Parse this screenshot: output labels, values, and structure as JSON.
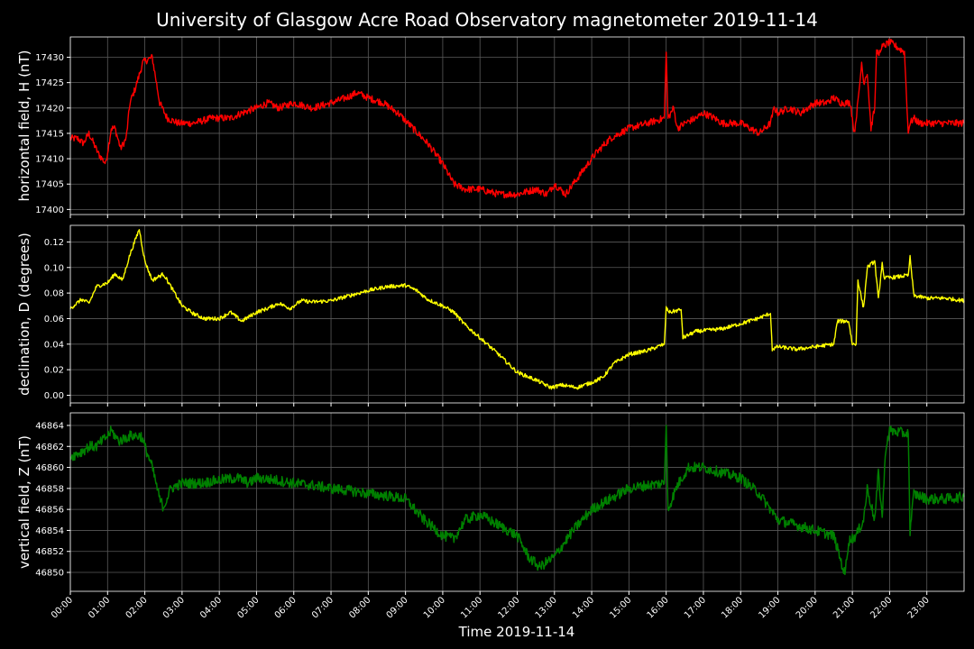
{
  "title": "University of Glasgow Acre Road Observatory magnetometer 2019-11-14",
  "xlabel": "Time 2019-11-14",
  "x_ticks": [
    "00:00",
    "01:00",
    "02:00",
    "03:00",
    "04:00",
    "05:00",
    "06:00",
    "07:00",
    "08:00",
    "09:00",
    "10:00",
    "11:00",
    "12:00",
    "13:00",
    "14:00",
    "15:00",
    "16:00",
    "17:00",
    "18:00",
    "19:00",
    "20:00",
    "21:00",
    "22:00",
    "23:00"
  ],
  "colors": {
    "background": "#000000",
    "grid": "#5a5a5a",
    "H": "#ff0000",
    "D": "#ffff00",
    "Z": "#008000"
  },
  "chart_data": [
    {
      "type": "line",
      "id": "H",
      "ylabel": "horizontal field, H (nT)",
      "ylim": [
        17399,
        17434
      ],
      "y_ticks": [
        17400,
        17405,
        17410,
        17415,
        17420,
        17425,
        17430
      ],
      "xlim_hours": [
        0,
        24
      ],
      "noise": 0.7,
      "grid": true,
      "series": [
        {
          "x_hours": [
            0,
            0.2,
            0.35,
            0.5,
            0.75,
            0.95,
            1.1,
            1.2,
            1.35,
            1.5,
            1.6,
            1.75,
            1.95,
            2.2,
            2.4,
            2.6,
            2.9,
            3.3,
            3.8,
            4.3,
            4.6,
            5.0,
            5.3,
            5.6,
            6.0,
            6.5,
            7.0,
            7.4,
            7.7,
            8.0,
            8.4,
            8.8,
            9.2,
            9.6,
            10.0,
            10.3,
            10.6,
            11.0,
            11.5,
            12.0,
            12.5,
            12.8,
            13.0,
            13.3,
            13.5,
            13.8,
            14.1,
            14.5,
            15.0,
            15.5,
            15.95,
            16.0,
            16.05,
            16.2,
            16.3,
            16.5,
            16.8,
            17.0,
            17.3,
            17.5,
            18.0,
            18.5,
            18.8,
            18.9,
            19.0,
            19.3,
            19.6,
            20.0,
            20.3,
            20.5,
            20.7,
            20.95,
            21.05,
            21.15,
            21.25,
            21.3,
            21.4,
            21.5,
            21.6,
            21.65,
            21.75,
            21.8,
            22.0,
            22.2,
            22.4,
            22.5,
            22.55,
            22.65,
            22.8,
            23.2,
            23.7,
            24.0
          ],
          "values": [
            17414,
            17414,
            17413,
            17415,
            17411,
            17409,
            17416,
            17416,
            17412,
            17414,
            17421,
            17424,
            17429,
            17430,
            17421,
            17418,
            17417,
            17417,
            17418,
            17418,
            17419,
            17420,
            17421,
            17420,
            17421,
            17420,
            17421,
            17422,
            17423,
            17422,
            17421,
            17419,
            17416,
            17413,
            17409,
            17405,
            17404,
            17404,
            17403,
            17403,
            17404,
            17403,
            17405,
            17403,
            17405,
            17408,
            17411,
            17414,
            17416,
            17417,
            17418,
            17431,
            17418,
            17420,
            17416,
            17417,
            17418,
            17419,
            17418,
            17417,
            17417,
            17415,
            17417,
            17420,
            17419,
            17420,
            17419,
            17421,
            17421,
            17422,
            17421,
            17421,
            17415,
            17421,
            17429,
            17425,
            17427,
            17416,
            17420,
            17431,
            17431,
            17432,
            17433,
            17432,
            17431,
            17415,
            17417,
            17418,
            17417,
            17417,
            17417,
            17417
          ]
        }
      ]
    },
    {
      "type": "line",
      "id": "D",
      "ylabel": "declination, D (degrees)",
      "ylim": [
        -0.006,
        0.133
      ],
      "y_ticks": [
        0.0,
        0.02,
        0.04,
        0.06,
        0.08,
        0.1,
        0.12
      ],
      "xlim_hours": [
        0,
        24
      ],
      "noise": 0.0015,
      "grid": true,
      "series": [
        {
          "x_hours": [
            0,
            0.3,
            0.5,
            0.7,
            1.0,
            1.2,
            1.4,
            1.6,
            1.85,
            2.0,
            2.2,
            2.5,
            2.8,
            3.0,
            3.3,
            3.6,
            4.0,
            4.3,
            4.6,
            5.0,
            5.3,
            5.6,
            5.9,
            6.2,
            6.5,
            7.0,
            7.5,
            8.0,
            8.5,
            9.0,
            9.3,
            9.6,
            10.0,
            10.3,
            10.6,
            11.0,
            11.5,
            12.0,
            12.5,
            12.9,
            13.2,
            13.6,
            14.0,
            14.3,
            14.6,
            15.0,
            15.5,
            15.95,
            16.0,
            16.1,
            16.4,
            16.45,
            16.8,
            17.5,
            18.0,
            18.45,
            18.8,
            18.85,
            19.0,
            19.5,
            20.0,
            20.5,
            20.6,
            20.9,
            21.0,
            21.1,
            21.15,
            21.3,
            21.4,
            21.6,
            21.7,
            21.8,
            21.85,
            22.0,
            22.3,
            22.5,
            22.55,
            22.65,
            23.0,
            23.5,
            24.0
          ],
          "values": [
            0.068,
            0.075,
            0.072,
            0.085,
            0.088,
            0.095,
            0.09,
            0.11,
            0.13,
            0.105,
            0.09,
            0.095,
            0.08,
            0.07,
            0.064,
            0.06,
            0.06,
            0.065,
            0.058,
            0.065,
            0.068,
            0.072,
            0.068,
            0.074,
            0.073,
            0.074,
            0.078,
            0.082,
            0.085,
            0.086,
            0.082,
            0.075,
            0.07,
            0.065,
            0.055,
            0.045,
            0.032,
            0.018,
            0.012,
            0.006,
            0.008,
            0.006,
            0.01,
            0.014,
            0.025,
            0.032,
            0.035,
            0.04,
            0.068,
            0.065,
            0.067,
            0.045,
            0.05,
            0.052,
            0.056,
            0.06,
            0.064,
            0.036,
            0.038,
            0.036,
            0.038,
            0.04,
            0.058,
            0.058,
            0.04,
            0.04,
            0.09,
            0.068,
            0.1,
            0.105,
            0.075,
            0.104,
            0.092,
            0.092,
            0.093,
            0.094,
            0.108,
            0.078,
            0.076,
            0.076,
            0.074
          ]
        }
      ]
    },
    {
      "type": "line",
      "id": "Z",
      "ylabel": "vertical field, Z (nT)",
      "ylim": [
        46848.2,
        46865.2
      ],
      "y_ticks": [
        46850,
        46852,
        46854,
        46856,
        46858,
        46860,
        46862,
        46864
      ],
      "xlim_hours": [
        0,
        24
      ],
      "noise": 0.5,
      "grid": true,
      "series": [
        {
          "x_hours": [
            0,
            0.3,
            0.5,
            0.7,
            1.0,
            1.1,
            1.3,
            1.6,
            1.9,
            2.0,
            2.2,
            2.4,
            2.5,
            2.7,
            3.0,
            3.5,
            4.0,
            4.5,
            4.8,
            5.0,
            5.5,
            6.0,
            6.5,
            7.0,
            7.5,
            8.0,
            8.5,
            9.0,
            9.5,
            10.0,
            10.3,
            10.6,
            11.0,
            11.5,
            12.0,
            12.3,
            12.6,
            13.0,
            13.5,
            14.0,
            14.5,
            15.0,
            15.5,
            15.95,
            16.0,
            16.05,
            16.3,
            16.6,
            17.0,
            17.5,
            18.0,
            18.5,
            19.0,
            19.5,
            20.0,
            20.5,
            20.7,
            20.8,
            20.9,
            21.1,
            21.3,
            21.4,
            21.6,
            21.7,
            21.8,
            21.9,
            22.0,
            22.5,
            22.55,
            22.65,
            23.0,
            23.5,
            24.0
          ],
          "values": [
            46861,
            46861.5,
            46862,
            46862,
            46863,
            46863.5,
            46862.5,
            46863,
            46863,
            46862,
            46860,
            46857,
            46856.2,
            46858,
            46858.5,
            46858.5,
            46858.8,
            46859,
            46858.5,
            46859,
            46858.8,
            46858.5,
            46858.3,
            46858,
            46857.8,
            46857.5,
            46857.3,
            46857,
            46855,
            46853.5,
            46853.2,
            46855,
            46855.5,
            46854.5,
            46853.5,
            46851.5,
            46850.5,
            46851.5,
            46854,
            46856,
            46857,
            46858,
            46858.3,
            46858.5,
            46864,
            46856,
            46858.3,
            46860,
            46860,
            46859.5,
            46859,
            46857.5,
            46855,
            46854.5,
            46854,
            46853.5,
            46851,
            46849.8,
            46853,
            46853.5,
            46855,
            46858,
            46855,
            46859.5,
            46855.2,
            46862,
            46863.5,
            46863.2,
            46854,
            46857.5,
            46857,
            46857,
            46857.2
          ]
        }
      ]
    }
  ]
}
